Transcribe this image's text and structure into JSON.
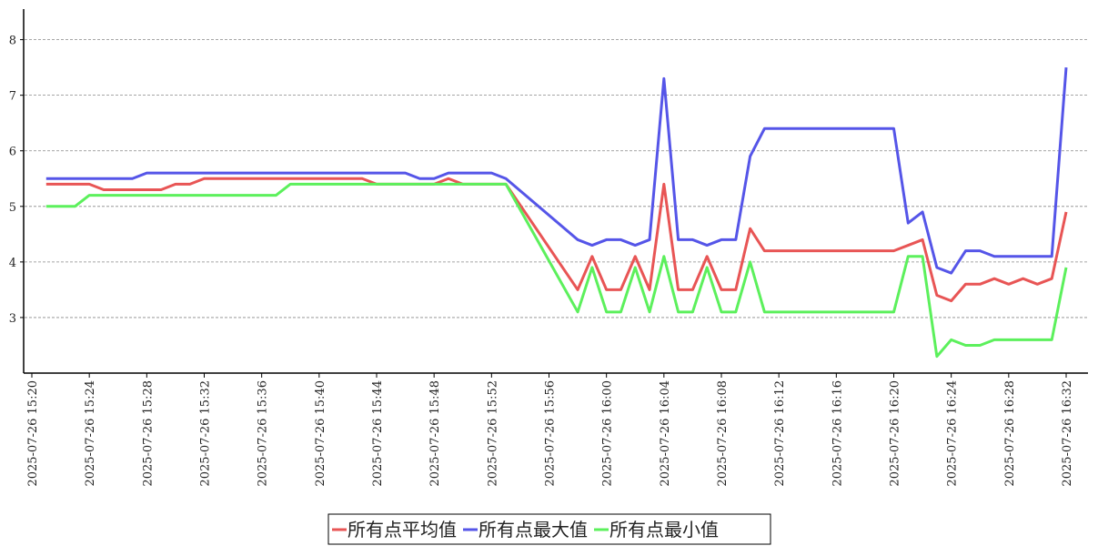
{
  "chart_data": {
    "type": "line",
    "x": [
      "2025-07-26 15:21",
      "2025-07-26 15:22",
      "2025-07-26 15:23",
      "2025-07-26 15:24",
      "2025-07-26 15:25",
      "2025-07-26 15:26",
      "2025-07-26 15:27",
      "2025-07-26 15:28",
      "2025-07-26 15:29",
      "2025-07-26 15:30",
      "2025-07-26 15:31",
      "2025-07-26 15:32",
      "2025-07-26 15:33",
      "2025-07-26 15:34",
      "2025-07-26 15:35",
      "2025-07-26 15:36",
      "2025-07-26 15:37",
      "2025-07-26 15:38",
      "2025-07-26 15:39",
      "2025-07-26 15:40",
      "2025-07-26 15:41",
      "2025-07-26 15:42",
      "2025-07-26 15:43",
      "2025-07-26 15:44",
      "2025-07-26 15:45",
      "2025-07-26 15:46",
      "2025-07-26 15:47",
      "2025-07-26 15:48",
      "2025-07-26 15:49",
      "2025-07-26 15:50",
      "2025-07-26 15:51",
      "2025-07-26 15:52",
      "2025-07-26 15:53",
      "2025-07-26 15:58",
      "2025-07-26 15:59",
      "2025-07-26 16:00",
      "2025-07-26 16:01",
      "2025-07-26 16:02",
      "2025-07-26 16:03",
      "2025-07-26 16:04",
      "2025-07-26 16:05",
      "2025-07-26 16:06",
      "2025-07-26 16:07",
      "2025-07-26 16:08",
      "2025-07-26 16:09",
      "2025-07-26 16:10",
      "2025-07-26 16:11",
      "2025-07-26 16:12",
      "2025-07-26 16:13",
      "2025-07-26 16:14",
      "2025-07-26 16:15",
      "2025-07-26 16:16",
      "2025-07-26 16:17",
      "2025-07-26 16:18",
      "2025-07-26 16:19",
      "2025-07-26 16:20",
      "2025-07-26 16:21",
      "2025-07-26 16:22",
      "2025-07-26 16:23",
      "2025-07-26 16:24",
      "2025-07-26 16:25",
      "2025-07-26 16:26",
      "2025-07-26 16:27",
      "2025-07-26 16:28",
      "2025-07-26 16:29",
      "2025-07-26 16:30",
      "2025-07-26 16:31",
      "2025-07-26 16:32"
    ],
    "series": [
      {
        "name": "所有点平均值",
        "color": "#e85555",
        "values": [
          5.4,
          5.4,
          5.4,
          5.4,
          5.3,
          5.3,
          5.3,
          5.3,
          5.3,
          5.4,
          5.4,
          5.5,
          5.5,
          5.5,
          5.5,
          5.5,
          5.5,
          5.5,
          5.5,
          5.5,
          5.5,
          5.5,
          5.5,
          5.4,
          5.4,
          5.4,
          5.4,
          5.4,
          5.5,
          5.4,
          5.4,
          5.4,
          5.4,
          3.5,
          4.1,
          3.5,
          3.5,
          4.1,
          3.5,
          5.4,
          3.5,
          3.5,
          4.1,
          3.5,
          3.5,
          4.6,
          4.2,
          4.2,
          4.2,
          4.2,
          4.2,
          4.2,
          4.2,
          4.2,
          4.2,
          4.2,
          4.3,
          4.4,
          3.4,
          3.3,
          3.6,
          3.6,
          3.7,
          3.6,
          3.7,
          3.6,
          3.7,
          4.9
        ]
      },
      {
        "name": "所有点最大值",
        "color": "#5555e8",
        "values": [
          5.5,
          5.5,
          5.5,
          5.5,
          5.5,
          5.5,
          5.5,
          5.6,
          5.6,
          5.6,
          5.6,
          5.6,
          5.6,
          5.6,
          5.6,
          5.6,
          5.6,
          5.6,
          5.6,
          5.6,
          5.6,
          5.6,
          5.6,
          5.6,
          5.6,
          5.6,
          5.5,
          5.5,
          5.6,
          5.6,
          5.6,
          5.6,
          5.5,
          4.4,
          4.3,
          4.4,
          4.4,
          4.3,
          4.4,
          7.3,
          4.4,
          4.4,
          4.3,
          4.4,
          4.4,
          5.9,
          6.4,
          6.4,
          6.4,
          6.4,
          6.4,
          6.4,
          6.4,
          6.4,
          6.4,
          6.4,
          4.7,
          4.9,
          3.9,
          3.8,
          4.2,
          4.2,
          4.1,
          4.1,
          4.1,
          4.1,
          4.1,
          7.5
        ]
      },
      {
        "name": "所有点最小值",
        "color": "#5cf05c",
        "values": [
          5.0,
          5.0,
          5.0,
          5.2,
          5.2,
          5.2,
          5.2,
          5.2,
          5.2,
          5.2,
          5.2,
          5.2,
          5.2,
          5.2,
          5.2,
          5.2,
          5.2,
          5.4,
          5.4,
          5.4,
          5.4,
          5.4,
          5.4,
          5.4,
          5.4,
          5.4,
          5.4,
          5.4,
          5.4,
          5.4,
          5.4,
          5.4,
          5.4,
          3.1,
          3.9,
          3.1,
          3.1,
          3.9,
          3.1,
          4.1,
          3.1,
          3.1,
          3.9,
          3.1,
          3.1,
          4.0,
          3.1,
          3.1,
          3.1,
          3.1,
          3.1,
          3.1,
          3.1,
          3.1,
          3.1,
          3.1,
          4.1,
          4.1,
          2.3,
          2.6,
          2.5,
          2.5,
          2.6,
          2.6,
          2.6,
          2.6,
          2.6,
          3.9
        ]
      }
    ],
    "xlim": [
      "2025-07-26 15:20",
      "2025-07-26 16:32"
    ],
    "xticks": [
      "2025-07-26 15:20",
      "2025-07-26 15:24",
      "2025-07-26 15:28",
      "2025-07-26 15:32",
      "2025-07-26 15:36",
      "2025-07-26 15:40",
      "2025-07-26 15:44",
      "2025-07-26 15:48",
      "2025-07-26 15:52",
      "2025-07-26 15:56",
      "2025-07-26 16:00",
      "2025-07-26 16:04",
      "2025-07-26 16:08",
      "2025-07-26 16:12",
      "2025-07-26 16:16",
      "2025-07-26 16:20",
      "2025-07-26 16:24",
      "2025-07-26 16:28",
      "2025-07-26 16:32"
    ],
    "ylim": [
      2,
      8.55
    ],
    "yticks": [
      3,
      4,
      5,
      6,
      7,
      8
    ],
    "grid": true,
    "legend": "bottom"
  }
}
